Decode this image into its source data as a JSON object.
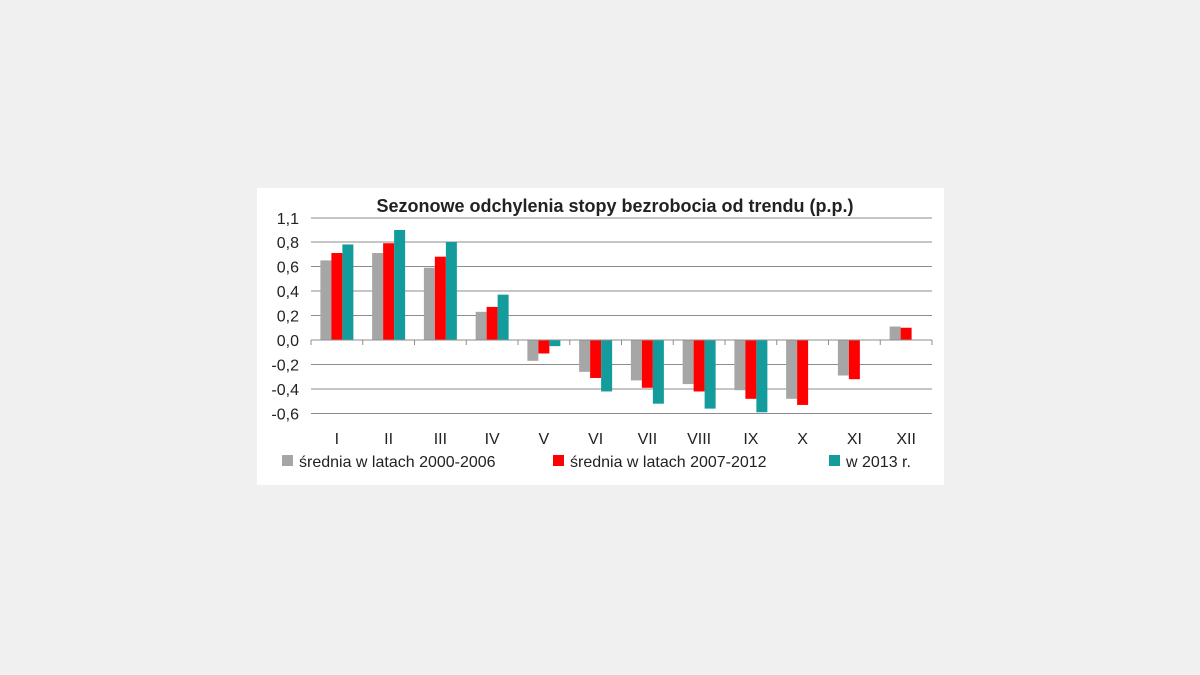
{
  "chart_data": {
    "type": "bar",
    "title": "Sezonowe odchylenia stopy bezrobocia od trendu (p.p.)",
    "xlabel": "",
    "ylabel": "",
    "ylim": [
      -0.6,
      1.1
    ],
    "y_ticks": [
      1.1,
      0.8,
      0.6,
      0.4,
      0.2,
      0.0,
      -0.2,
      -0.4,
      -0.6
    ],
    "y_tick_labels": [
      "1,1",
      "0,8",
      "0,6",
      "0,4",
      "0,2",
      "0,0",
      "-0,2",
      "-0,4",
      "-0,6"
    ],
    "grid": true,
    "legend_position": "bottom",
    "categories": [
      "I",
      "II",
      "III",
      "IV",
      "V",
      "VI",
      "VII",
      "VIII",
      "IX",
      "X",
      "XI",
      "XII"
    ],
    "series": [
      {
        "name": "średnia w latach 2000-2006",
        "color": "#a6a6a6",
        "values": [
          0.65,
          0.71,
          0.59,
          0.23,
          -0.17,
          -0.26,
          -0.33,
          -0.36,
          -0.41,
          -0.48,
          -0.29,
          0.11
        ]
      },
      {
        "name": "średnia w latach 2007-2012",
        "color": "#ff0000",
        "values": [
          0.71,
          0.79,
          0.68,
          0.27,
          -0.11,
          -0.31,
          -0.39,
          -0.42,
          -0.48,
          -0.53,
          -0.32,
          0.1
        ]
      },
      {
        "name": "w 2013 r.",
        "color": "#149c9c",
        "values": [
          0.78,
          0.95,
          0.8,
          0.37,
          -0.05,
          -0.42,
          -0.52,
          -0.56,
          -0.59,
          null,
          null,
          null
        ]
      }
    ]
  }
}
